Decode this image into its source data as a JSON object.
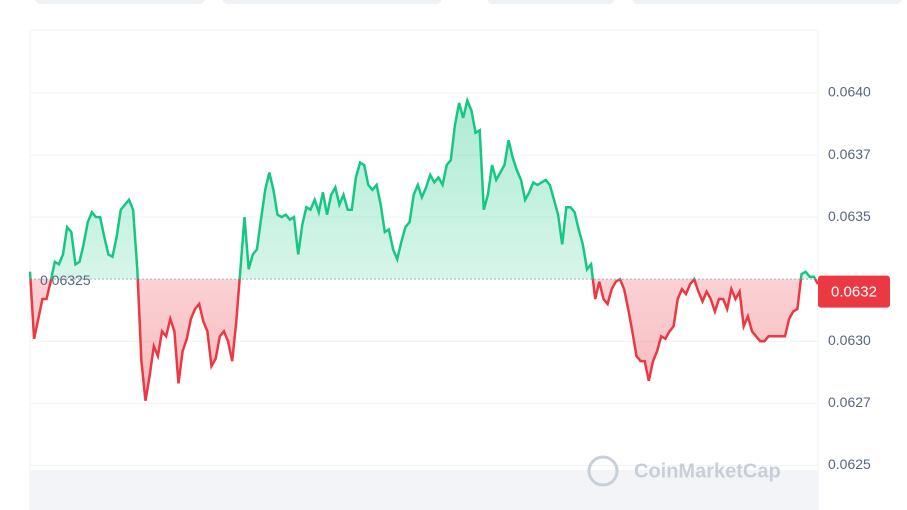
{
  "chart_data": {
    "type": "line",
    "values": [
      0.06328,
      0.06301,
      0.06309,
      0.06317,
      0.06317,
      0.06324,
      0.06332,
      0.06331,
      0.06335,
      0.06346,
      0.06344,
      0.06331,
      0.06332,
      0.06339,
      0.06348,
      0.06352,
      0.0635,
      0.0635,
      0.06342,
      0.06335,
      0.06334,
      0.06342,
      0.06353,
      0.06355,
      0.06357,
      0.06353,
      0.06329,
      0.06292,
      0.06276,
      0.06286,
      0.06298,
      0.06294,
      0.06304,
      0.06302,
      0.06309,
      0.06304,
      0.06283,
      0.06296,
      0.06301,
      0.06309,
      0.06313,
      0.06315,
      0.06308,
      0.06304,
      0.0629,
      0.06293,
      0.06302,
      0.06304,
      0.063,
      0.06292,
      0.06308,
      0.06329,
      0.0635,
      0.06329,
      0.06335,
      0.06337,
      0.06349,
      0.06361,
      0.06368,
      0.06361,
      0.06351,
      0.0635,
      0.06351,
      0.06349,
      0.0635,
      0.06335,
      0.06347,
      0.06354,
      0.06353,
      0.06357,
      0.06352,
      0.0636,
      0.06351,
      0.06359,
      0.06362,
      0.06355,
      0.06359,
      0.06353,
      0.06353,
      0.06366,
      0.06372,
      0.06371,
      0.06363,
      0.06361,
      0.06363,
      0.06355,
      0.06344,
      0.06345,
      0.06337,
      0.06333,
      0.0634,
      0.06346,
      0.06348,
      0.06359,
      0.06363,
      0.06358,
      0.06362,
      0.06367,
      0.06364,
      0.06366,
      0.06363,
      0.06371,
      0.06373,
      0.06387,
      0.06396,
      0.0639,
      0.06397,
      0.06393,
      0.06384,
      0.06385,
      0.06353,
      0.06359,
      0.06371,
      0.06365,
      0.06368,
      0.06371,
      0.06381,
      0.06374,
      0.06369,
      0.06365,
      0.06357,
      0.0636,
      0.06364,
      0.06363,
      0.06364,
      0.06365,
      0.06363,
      0.06357,
      0.06351,
      0.06339,
      0.06354,
      0.06354,
      0.06352,
      0.06345,
      0.06339,
      0.06329,
      0.06331,
      0.06317,
      0.06324,
      0.06317,
      0.06315,
      0.06321,
      0.06324,
      0.06325,
      0.06321,
      0.06313,
      0.06304,
      0.06294,
      0.06292,
      0.06292,
      0.06284,
      0.06292,
      0.06296,
      0.06302,
      0.06301,
      0.06304,
      0.06306,
      0.06317,
      0.06321,
      0.06319,
      0.06323,
      0.06325,
      0.0632,
      0.06316,
      0.0632,
      0.06317,
      0.06312,
      0.06317,
      0.06317,
      0.06313,
      0.06321,
      0.06317,
      0.0632,
      0.06306,
      0.0631,
      0.06304,
      0.06302,
      0.063,
      0.063,
      0.06302,
      0.06302,
      0.06302,
      0.06302,
      0.06302,
      0.06309,
      0.06312,
      0.06313,
      0.06327,
      0.06328,
      0.06326,
      0.06326,
      0.06323
    ],
    "baseline": 0.06325,
    "current_price": 0.0632,
    "ylim": [
      0.06232,
      0.06425
    ],
    "yticks": [
      0.0625,
      {
        "value": 0.06275,
        "label": "0.0627"
      },
      {
        "value": 0.063,
        "label": "0.0630"
      },
      0.0635,
      {
        "value": 0.06375,
        "label": "0.0637"
      },
      {
        "value": 0.064,
        "label": "0.0640"
      }
    ],
    "up_color": "#16c784",
    "down_color": "#ea3943",
    "grid": true,
    "watermark": "CoinMarketCap"
  }
}
